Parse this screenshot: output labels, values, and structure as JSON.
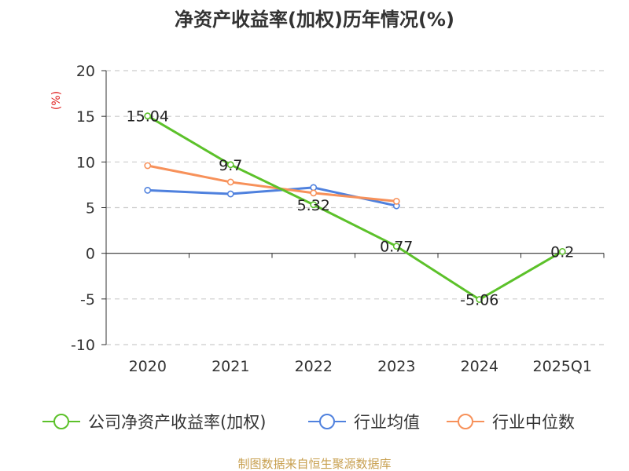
{
  "chart_data": {
    "type": "line",
    "title": "净资产收益率(加权)历年情况(%)",
    "ylabel": "(%)",
    "xlabel": "",
    "categories": [
      "2020",
      "2021",
      "2022",
      "2023",
      "2024",
      "2025Q1"
    ],
    "ylim": [
      -10,
      20
    ],
    "yticks": [
      -10,
      -5,
      0,
      5,
      10,
      15,
      20
    ],
    "grid": true,
    "legend_position": "bottom",
    "series": [
      {
        "name": "公司净资产收益率(加权)",
        "color": "#5cc12a",
        "values": [
          15.04,
          9.7,
          5.32,
          0.77,
          -5.06,
          0.2
        ],
        "labels": [
          "15.04",
          "9.7",
          "5.32",
          "0.77",
          "-5.06",
          "0.2"
        ]
      },
      {
        "name": "行业均值",
        "color": "#4f81de",
        "values": [
          6.9,
          6.5,
          7.2,
          5.2,
          null,
          null
        ]
      },
      {
        "name": "行业中位数",
        "color": "#f7915a",
        "values": [
          9.6,
          7.8,
          6.6,
          5.7,
          null,
          null
        ]
      }
    ],
    "axis_color": "#333333",
    "unit_color": "#e02020"
  },
  "source": {
    "text": "制图数据来自恒生聚源数据库",
    "color": "#c8a050"
  }
}
